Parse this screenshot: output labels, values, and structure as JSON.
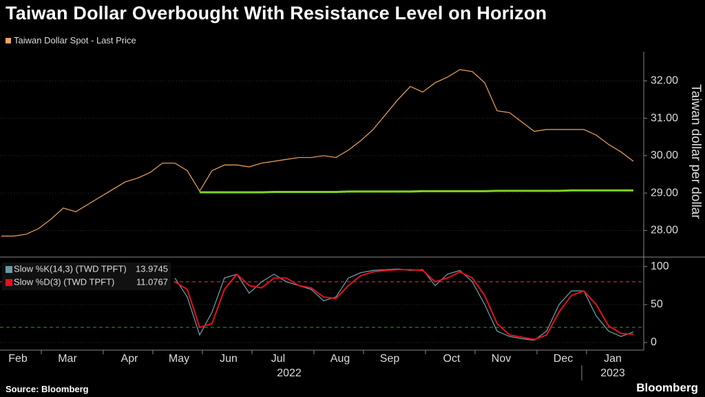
{
  "chart_data": [
    {
      "type": "line",
      "title": "Taiwan Dollar Overbought With Resistance Level on Horizon",
      "y_label": "Taiwan dollar per dollar",
      "ylim": [
        27.38,
        32.78
      ],
      "yticks": [
        {
          "value": 28,
          "label": "28.00"
        },
        {
          "value": 29,
          "label": "29.00"
        },
        {
          "value": 30,
          "label": "30.00"
        },
        {
          "value": 31,
          "label": "31.00"
        },
        {
          "value": 32,
          "label": "32.00"
        }
      ],
      "series": [
        {
          "name": "Taiwan Dollar Spot - Last Price",
          "color": "#f5a55a",
          "values": [
            27.85,
            27.85,
            27.9,
            28.05,
            28.3,
            28.6,
            28.5,
            28.7,
            28.9,
            29.1,
            29.3,
            29.4,
            29.55,
            29.8,
            29.8,
            29.6,
            29.05,
            29.6,
            29.75,
            29.75,
            29.7,
            29.8,
            29.85,
            29.9,
            29.95,
            29.95,
            30.0,
            29.95,
            30.15,
            30.4,
            30.7,
            31.1,
            31.5,
            31.85,
            31.7,
            31.95,
            32.1,
            32.3,
            32.25,
            31.95,
            31.2,
            31.15,
            30.9,
            30.65,
            30.7,
            30.7,
            30.7,
            30.7,
            30.55,
            30.3,
            30.1,
            29.85
          ]
        }
      ],
      "resistance_line": {
        "color": "#7ed321",
        "values": [
          null,
          null,
          null,
          null,
          null,
          null,
          null,
          null,
          null,
          null,
          null,
          null,
          null,
          null,
          null,
          null,
          29.02,
          29.02,
          29.02,
          29.02,
          29.02,
          29.02,
          29.03,
          29.03,
          29.03,
          29.03,
          29.03,
          29.03,
          29.04,
          29.04,
          29.04,
          29.04,
          29.04,
          29.04,
          29.05,
          29.05,
          29.05,
          29.05,
          29.05,
          29.05,
          29.06,
          29.06,
          29.06,
          29.06,
          29.06,
          29.06,
          29.07,
          29.07,
          29.07,
          29.07,
          29.07,
          29.07
        ]
      }
    },
    {
      "type": "line",
      "source": "Source: Bloomberg",
      "brand": "Bloomberg",
      "years": [
        "2022",
        "2023"
      ],
      "categories": [
        null,
        "Feb",
        null,
        null,
        null,
        "Mar",
        null,
        null,
        null,
        null,
        "Apr",
        null,
        null,
        null,
        "May",
        null,
        null,
        null,
        "Jun",
        null,
        null,
        null,
        "Jul",
        null,
        null,
        null,
        null,
        "Aug",
        null,
        null,
        null,
        "Sep",
        null,
        null,
        null,
        null,
        "Oct",
        null,
        null,
        null,
        "Nov",
        null,
        null,
        null,
        null,
        "Dec",
        null,
        null,
        null,
        "Jan",
        null,
        null
      ],
      "ylim": [
        -10,
        108
      ],
      "yticks": [
        0,
        50,
        100
      ],
      "levels": [
        {
          "value": 80,
          "color": "#e0403a"
        },
        {
          "value": 20,
          "color": "#3a9a3a"
        }
      ],
      "series": [
        {
          "name": "Slow %K(14,3) (TWD TPFT)",
          "last_value": 13.9745,
          "color": "#6a9aa8",
          "values": [
            null,
            null,
            null,
            null,
            null,
            null,
            null,
            null,
            null,
            null,
            null,
            null,
            null,
            null,
            85,
            60,
            10,
            40,
            85,
            90,
            65,
            80,
            90,
            80,
            75,
            70,
            55,
            60,
            85,
            92,
            95,
            96,
            97,
            95,
            96,
            75,
            90,
            95,
            80,
            50,
            15,
            8,
            5,
            3,
            15,
            50,
            68,
            68,
            35,
            15,
            8,
            14
          ]
        },
        {
          "name": "Slow %D(3) (TWD TPFT)",
          "last_value": 11.0767,
          "color": "#e8101a",
          "values": [
            null,
            null,
            null,
            null,
            null,
            null,
            null,
            null,
            null,
            null,
            null,
            null,
            null,
            null,
            80,
            70,
            20,
            25,
            70,
            90,
            75,
            72,
            85,
            85,
            75,
            72,
            60,
            58,
            75,
            88,
            93,
            95,
            96,
            96,
            95,
            80,
            85,
            93,
            85,
            62,
            25,
            10,
            7,
            4,
            10,
            40,
            62,
            68,
            50,
            22,
            12,
            11
          ]
        }
      ]
    }
  ]
}
